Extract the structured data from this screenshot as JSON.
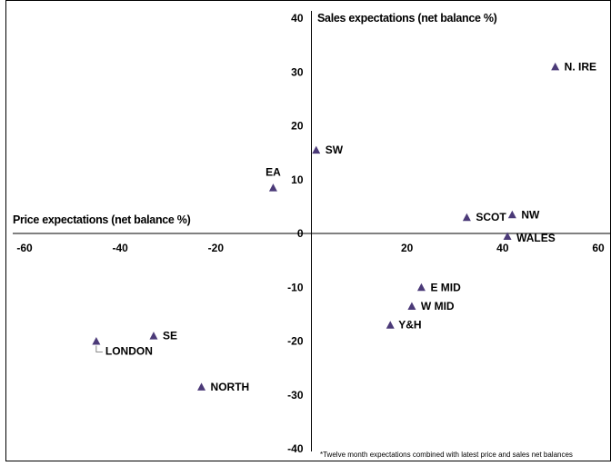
{
  "chart_data": {
    "type": "scatter",
    "xlabel": "Price expectations (net balance %)",
    "ylabel": "Sales expectations (net balance %)",
    "xlim": [
      -60,
      60
    ],
    "ylim": [
      -40,
      40
    ],
    "x_ticks": [
      "-60",
      "-40",
      "-20",
      "0",
      "20",
      "40",
      "60"
    ],
    "y_ticks": [
      "40",
      "30",
      "20",
      "10",
      "0",
      "-10",
      "-20",
      "-30",
      "-40"
    ],
    "grid": false,
    "marker_color": "#4b3a78",
    "points": [
      {
        "label": "N. IRE",
        "x": 51,
        "y": 31
      },
      {
        "label": "SW",
        "x": 1,
        "y": 15.5
      },
      {
        "label": "EA",
        "x": -8,
        "y": 8.5
      },
      {
        "label": "SCOT",
        "x": 32.5,
        "y": 3
      },
      {
        "label": "NW",
        "x": 42,
        "y": 3.5
      },
      {
        "label": "WALES",
        "x": 41,
        "y": -0.5
      },
      {
        "label": "E MID",
        "x": 23,
        "y": -10
      },
      {
        "label": "W MID",
        "x": 21,
        "y": -13.5
      },
      {
        "label": "Y&H",
        "x": 16.5,
        "y": -17
      },
      {
        "label": "SE",
        "x": -33,
        "y": -19
      },
      {
        "label": "LONDON",
        "x": -45,
        "y": -20
      },
      {
        "label": "NORTH",
        "x": -23,
        "y": -28.5
      }
    ],
    "footnote": "*Twelve  month  expectations  combined  with  latest  price  and  sales  net  balances"
  }
}
